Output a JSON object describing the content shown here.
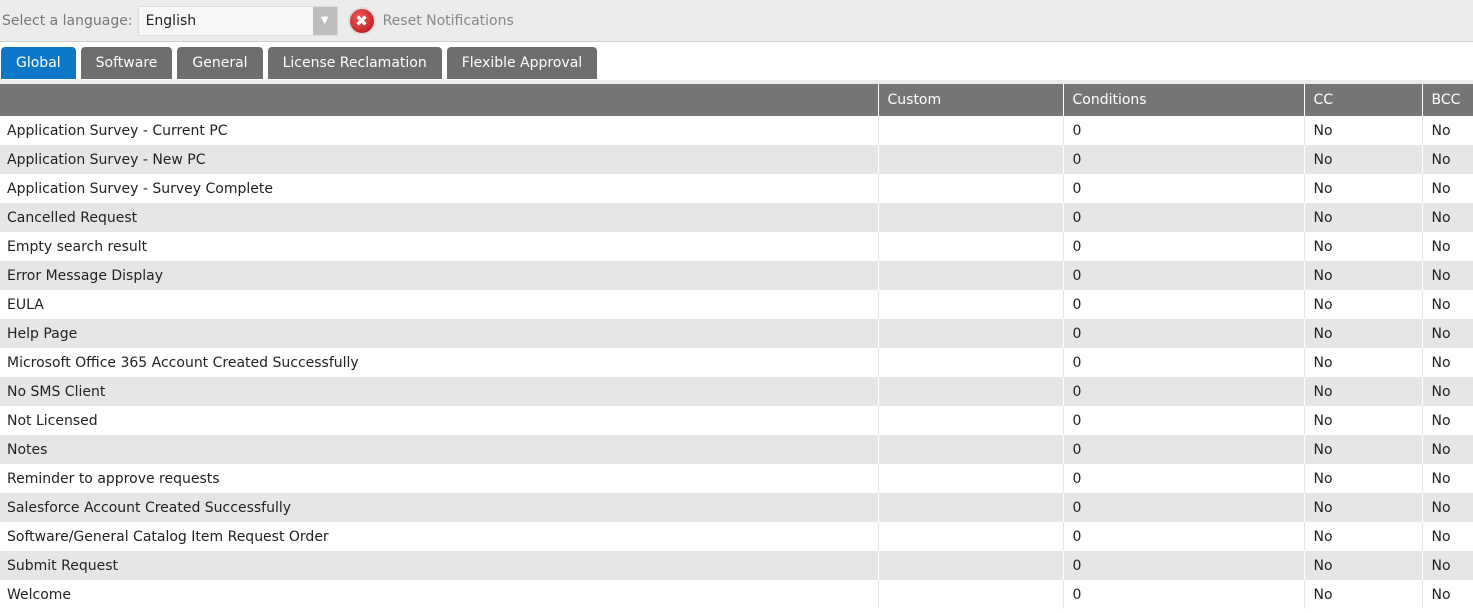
{
  "toolbar": {
    "language_label": "Select a language:",
    "language_value": "English",
    "reset_label": "Reset Notifications"
  },
  "tabs": [
    {
      "label": "Global",
      "active": true
    },
    {
      "label": "Software"
    },
    {
      "label": "General"
    },
    {
      "label": "License Reclamation"
    },
    {
      "label": "Flexible Approval"
    }
  ],
  "table": {
    "headers": [
      "",
      "Custom",
      "Conditions",
      "CC",
      "BCC"
    ],
    "rows": [
      {
        "name": "Application Survey - Current PC",
        "custom": "",
        "conditions": "0",
        "cc": "No",
        "bcc": "No"
      },
      {
        "name": "Application Survey - New PC",
        "custom": "",
        "conditions": "0",
        "cc": "No",
        "bcc": "No"
      },
      {
        "name": "Application Survey - Survey Complete",
        "custom": "",
        "conditions": "0",
        "cc": "No",
        "bcc": "No"
      },
      {
        "name": "Cancelled Request",
        "custom": "",
        "conditions": "0",
        "cc": "No",
        "bcc": "No"
      },
      {
        "name": "Empty search result",
        "custom": "",
        "conditions": "0",
        "cc": "No",
        "bcc": "No"
      },
      {
        "name": "Error Message Display",
        "custom": "",
        "conditions": "0",
        "cc": "No",
        "bcc": "No"
      },
      {
        "name": "EULA",
        "custom": "",
        "conditions": "0",
        "cc": "No",
        "bcc": "No"
      },
      {
        "name": "Help Page",
        "custom": "",
        "conditions": "0",
        "cc": "No",
        "bcc": "No"
      },
      {
        "name": "Microsoft Office 365 Account Created Successfully",
        "custom": "",
        "conditions": "0",
        "cc": "No",
        "bcc": "No"
      },
      {
        "name": "No SMS Client",
        "custom": "",
        "conditions": "0",
        "cc": "No",
        "bcc": "No"
      },
      {
        "name": "Not Licensed",
        "custom": "",
        "conditions": "0",
        "cc": "No",
        "bcc": "No"
      },
      {
        "name": "Notes",
        "custom": "",
        "conditions": "0",
        "cc": "No",
        "bcc": "No"
      },
      {
        "name": "Reminder to approve requests",
        "custom": "",
        "conditions": "0",
        "cc": "No",
        "bcc": "No"
      },
      {
        "name": "Salesforce Account Created Successfully",
        "custom": "",
        "conditions": "0",
        "cc": "No",
        "bcc": "No"
      },
      {
        "name": "Software/General Catalog Item Request Order",
        "custom": "",
        "conditions": "0",
        "cc": "No",
        "bcc": "No"
      },
      {
        "name": "Submit Request",
        "custom": "",
        "conditions": "0",
        "cc": "No",
        "bcc": "No"
      },
      {
        "name": "Welcome",
        "custom": "",
        "conditions": "0",
        "cc": "No",
        "bcc": "No"
      }
    ]
  },
  "colors": {
    "active_tab": "#0e78c8",
    "tab": "#6e6e6e",
    "header": "#767676",
    "stripe": "#e6e6e6"
  }
}
